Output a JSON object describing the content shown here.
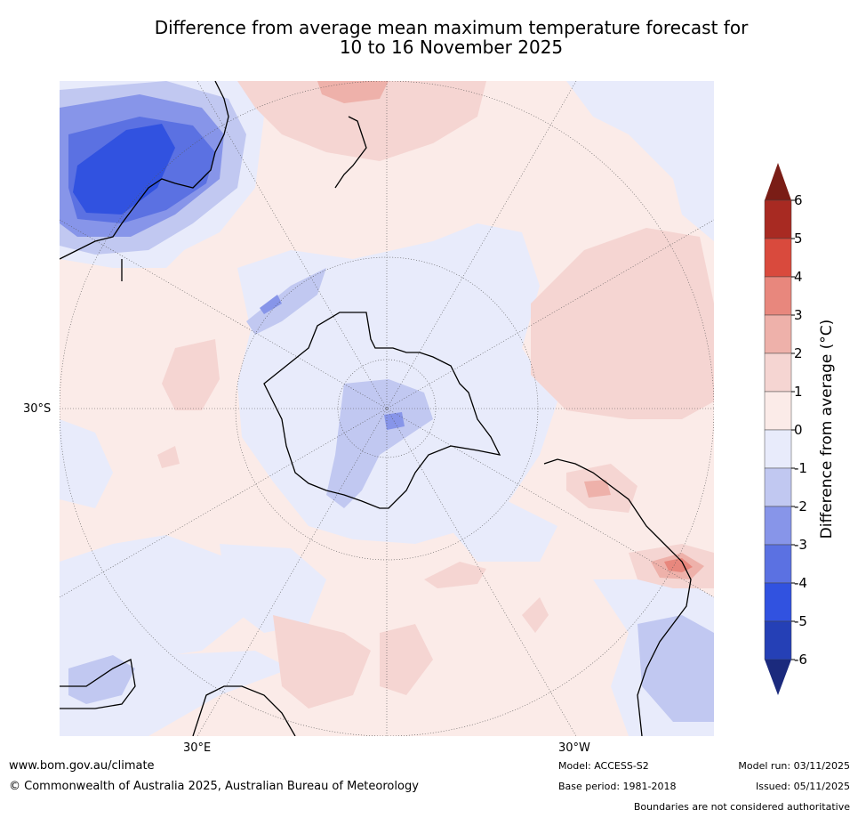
{
  "title": {
    "line1": "Difference from average mean maximum temperature forecast for",
    "line2": "10 to 16 November 2025"
  },
  "map": {
    "lat_label": "30°S",
    "lon_labels": [
      "30°E",
      "30°W"
    ]
  },
  "colorbar": {
    "label": "Difference from average (°C)",
    "ticks": [
      "6",
      "5",
      "4",
      "3",
      "2",
      "1",
      "0",
      "-1",
      "-2",
      "-3",
      "-4",
      "-5",
      "-6"
    ],
    "colors": [
      "#7a1d16",
      "#a82a22",
      "#d94a3d",
      "#e8877d",
      "#eeb1aa",
      "#f5d5d2",
      "#fbebe8",
      "#e8ebfb",
      "#c1c8f1",
      "#8795e9",
      "#5b71e2",
      "#3152e0",
      "#2540b6",
      "#1b2a7d"
    ]
  },
  "footer": {
    "website": "www.bom.gov.au/climate",
    "copyright": "© Commonwealth of Australia 2025, Australian Bureau of Meteorology",
    "model": "Model: ACCESS-S2",
    "base_period": "Base period: 1981-2018",
    "model_run": "Model run: 03/11/2025",
    "issued": "Issued: 05/11/2025",
    "disclaimer": "Boundaries are not considered authoritative"
  }
}
